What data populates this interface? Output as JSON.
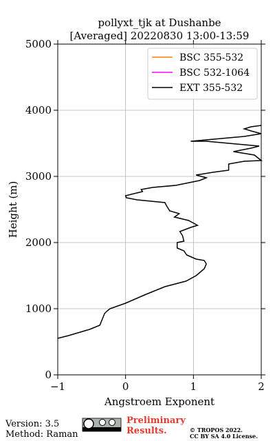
{
  "chart_data": {
    "type": "line",
    "title": "pollyxt_tjk at Dushanbe",
    "subtitle": "[Averaged] 20220830 13:00-13:59",
    "xlabel": "Angstroem Exponent",
    "ylabel": "Height (m)",
    "xlim": [
      -1,
      2
    ],
    "xticks": [
      {
        "value": -1,
        "label": "−1"
      },
      0,
      1,
      2
    ],
    "ylim": [
      0,
      5000
    ],
    "yticks": [
      0,
      1000,
      2000,
      3000,
      4000,
      5000
    ],
    "grid": true,
    "legend": "upper right",
    "series": [
      {
        "name": "BSC 355-532",
        "color": "#ff7f0e",
        "y": [],
        "values": []
      },
      {
        "name": "BSC 532-1064",
        "color": "#ff00ff",
        "y": [],
        "values": []
      },
      {
        "name": "EXT 355-532",
        "color": "#000000",
        "y": [
          552,
          594,
          688,
          750,
          875,
          927,
          958,
          1000,
          1083,
          1208,
          1333,
          1417,
          1500,
          1604,
          1677,
          1729,
          1750,
          1813,
          1875,
          1917,
          2000,
          2021,
          2104,
          2167,
          2229,
          2260,
          2333,
          2385,
          2438,
          2479,
          2563,
          2604,
          2646,
          2677,
          2708,
          2771,
          2802,
          2833,
          2865,
          2938,
          2979,
          3021,
          3063,
          3094,
          3188,
          3229,
          3240,
          3323,
          3375,
          3427,
          3458,
          3531,
          3531,
          3604,
          3646,
          3688,
          3719,
          3750,
          3771
        ],
        "values": [
          -1,
          -0.84,
          -0.53,
          -0.38,
          -0.33,
          -0.31,
          -0.28,
          -0.23,
          0,
          0.28,
          0.58,
          0.89,
          1.04,
          1.16,
          1.19,
          1.16,
          1.04,
          0.9,
          0.86,
          0.76,
          0.76,
          0.86,
          0.84,
          0.8,
          0.96,
          1.06,
          0.93,
          0.72,
          0.79,
          0.65,
          0.6,
          0.58,
          0.17,
          0.01,
          0,
          0.25,
          0.23,
          0.4,
          0.74,
          1.09,
          1.19,
          1.04,
          1.29,
          1.52,
          1.52,
          1.75,
          2,
          1.9,
          1.59,
          1.85,
          1.97,
          1.19,
          0.96,
          1.75,
          2,
          1.85,
          1.75,
          1.85,
          2
        ]
      }
    ]
  },
  "footer": {
    "version": "Version: 3.5",
    "method": "Method: Raman",
    "preliminary": [
      "Preliminary",
      "Results."
    ],
    "copyright": "© TROPOS 2022.",
    "license": "CC BY SA 4.0 License."
  }
}
